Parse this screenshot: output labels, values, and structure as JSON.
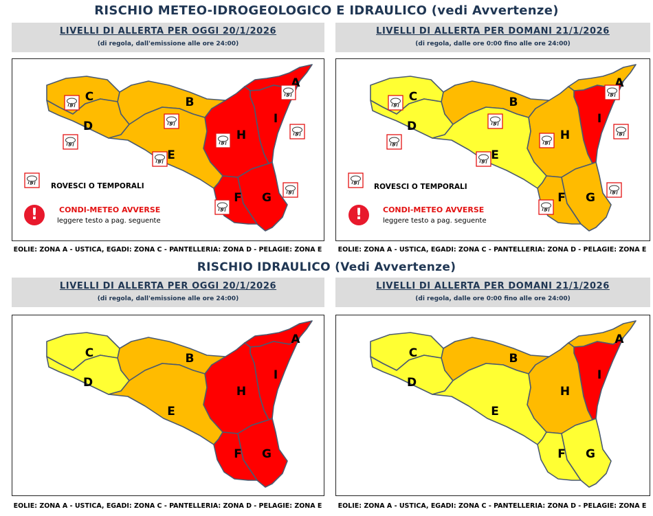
{
  "sections": [
    {
      "title": "RISCHIO METEO-IDROGEOLOGICO E IDRAULICO",
      "title_note": "(vedi Avvertenze)",
      "panels": [
        {
          "heading": "LIVELLI DI ALLERTA PER OGGI 20/1/2026",
          "subheading": "(di regola, dall'emissione alle ore 24:00)",
          "zones": {
            "A": "red",
            "B": "orange",
            "C": "orange",
            "D": "orange",
            "E": "orange",
            "F": "red",
            "G": "red",
            "H": "red",
            "I": "red"
          },
          "storm_icons": [
            "A",
            "B",
            "C",
            "D",
            "E",
            "F",
            "G",
            "H",
            "I"
          ],
          "show_legend": true
        },
        {
          "heading": "LIVELLI DI ALLERTA PER DOMANI 21/1/2026",
          "subheading": "(di regola, dalle ore 0:00 fino alle ore 24:00)",
          "zones": {
            "A": "orange",
            "B": "orange",
            "C": "yellow",
            "D": "yellow",
            "E": "yellow",
            "F": "orange",
            "G": "orange",
            "H": "orange",
            "I": "red"
          },
          "storm_icons": [
            "A",
            "B",
            "C",
            "D",
            "E",
            "F",
            "G",
            "H",
            "I"
          ],
          "show_legend": true
        }
      ]
    },
    {
      "title": "RISCHIO IDRAULICO",
      "title_note": "(Vedi Avvertenze)",
      "panels": [
        {
          "heading": "LIVELLI DI ALLERTA PER OGGI 20/1/2026",
          "subheading": "(di regola, dall'emissione alle ore 24:00)",
          "zones": {
            "A": "red",
            "B": "orange",
            "C": "yellow",
            "D": "yellow",
            "E": "orange",
            "F": "red",
            "G": "red",
            "H": "red",
            "I": "red"
          },
          "storm_icons": [],
          "show_legend": false
        },
        {
          "heading": "LIVELLI DI ALLERTA PER DOMANI 21/1/2026",
          "subheading": "(di regola, dalle ore 0:00 fino alle ore 24:00)",
          "zones": {
            "A": "orange",
            "B": "orange",
            "C": "yellow",
            "D": "yellow",
            "E": "yellow",
            "F": "yellow",
            "G": "yellow",
            "H": "orange",
            "I": "red"
          },
          "storm_icons": [],
          "show_legend": false
        }
      ]
    }
  ],
  "islands_note": "EOLIE: ZONA A - USTICA, EGADI: ZONA C - PANTELLERIA: ZONA D - PELAGIE: ZONA E",
  "legend": {
    "storm_label": "ROVESCI O TEMPORALI",
    "adverse_label": "CONDI-METEO AVVERSE",
    "adverse_note": "leggere testo a pag. seguente",
    "adverse_symbol": "!"
  },
  "zone_letters": [
    "A",
    "B",
    "C",
    "D",
    "E",
    "F",
    "G",
    "H",
    "I"
  ],
  "colors": {
    "red": "#ff0000",
    "orange": "#ffbb00",
    "yellow": "#ffff33",
    "border": "#4a5a70",
    "heading": "#1f3653",
    "band": "#dcdcdc",
    "legend_red": "#e8192c"
  }
}
